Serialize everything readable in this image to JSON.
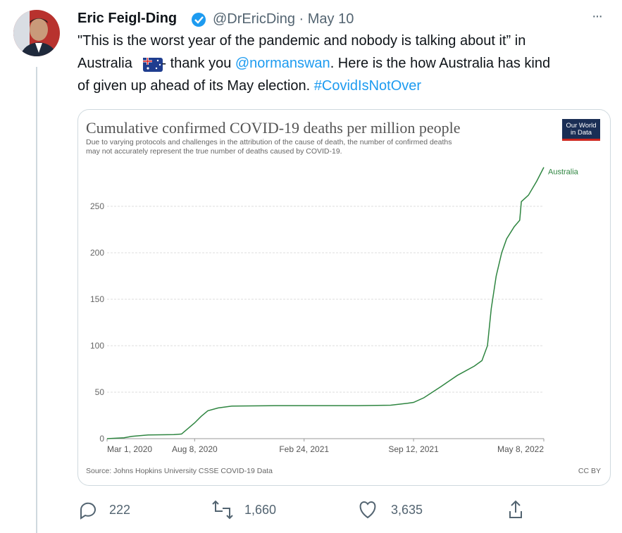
{
  "tweet": {
    "author_name": "Eric Feigl-Ding",
    "meta": "@DrEricDing · May 10",
    "more": "···",
    "text": {
      "line1": "\"This is the worst year of the pandemic and nobody is talking about it” in",
      "line2_a": "Australia",
      "line2_b": " - thank you ",
      "line2_link": "@normanswan",
      "line2_c": ". Here is the how Australia has kind",
      "line3_a": "of given up ahead of its May election. ",
      "line3_link": "#CovidIsNotOver"
    },
    "replies": "222",
    "retweets": "1,660",
    "likes": "3,635"
  },
  "chart_data": {
    "type": "line",
    "title": "Cumulative confirmed COVID-19 deaths per million people",
    "subtitle": [
      "Due to varying protocols and challenges in the attribution of the cause of death, the number of confirmed deaths",
      "may not accurately represent the true number of deaths caused by COVID-19."
    ],
    "logo": [
      "Our World",
      "in Data"
    ],
    "source": "Source: Johns Hopkins University CSSE COVID-19 Data",
    "license": "CC BY",
    "x": [
      "2020-03-01",
      "2020-04-01",
      "2020-04-15",
      "2020-05-15",
      "2020-07-01",
      "2020-07-15",
      "2020-08-08",
      "2020-08-20",
      "2020-09-01",
      "2020-09-20",
      "2020-10-15",
      "2021-01-01",
      "2021-06-01",
      "2021-08-01",
      "2021-09-01",
      "2021-09-12",
      "2021-10-01",
      "2021-11-01",
      "2021-12-01",
      "2022-01-01",
      "2022-01-15",
      "2022-01-25",
      "2022-02-01",
      "2022-02-10",
      "2022-02-20",
      "2022-03-01",
      "2022-03-15",
      "2022-03-25",
      "2022-03-28",
      "2022-04-10",
      "2022-04-25",
      "2022-05-08"
    ],
    "series": [
      {
        "name": "Australia",
        "color": "#2e8540",
        "values": [
          0,
          1,
          2.5,
          4,
          4.3,
          5,
          17,
          24,
          30,
          33,
          35,
          35.5,
          35.5,
          36,
          38,
          39,
          44,
          56,
          68,
          78,
          84,
          100,
          140,
          175,
          200,
          215,
          228,
          235,
          255,
          262,
          277,
          292
        ]
      }
    ],
    "xlim": [
      "2020-03-01",
      "2022-05-08"
    ],
    "xticks": [
      {
        "value": "2020-03-01",
        "label": "Mar 1, 2020"
      },
      {
        "value": "2020-08-08",
        "label": "Aug 8, 2020"
      },
      {
        "value": "2021-02-24",
        "label": "Feb 24, 2021"
      },
      {
        "value": "2021-09-12",
        "label": "Sep 12, 2021"
      },
      {
        "value": "2022-05-08",
        "label": "May 8, 2022"
      }
    ],
    "ylim": [
      0,
      295
    ],
    "yticks": [
      0,
      50,
      100,
      150,
      200,
      250
    ],
    "grid": true
  }
}
